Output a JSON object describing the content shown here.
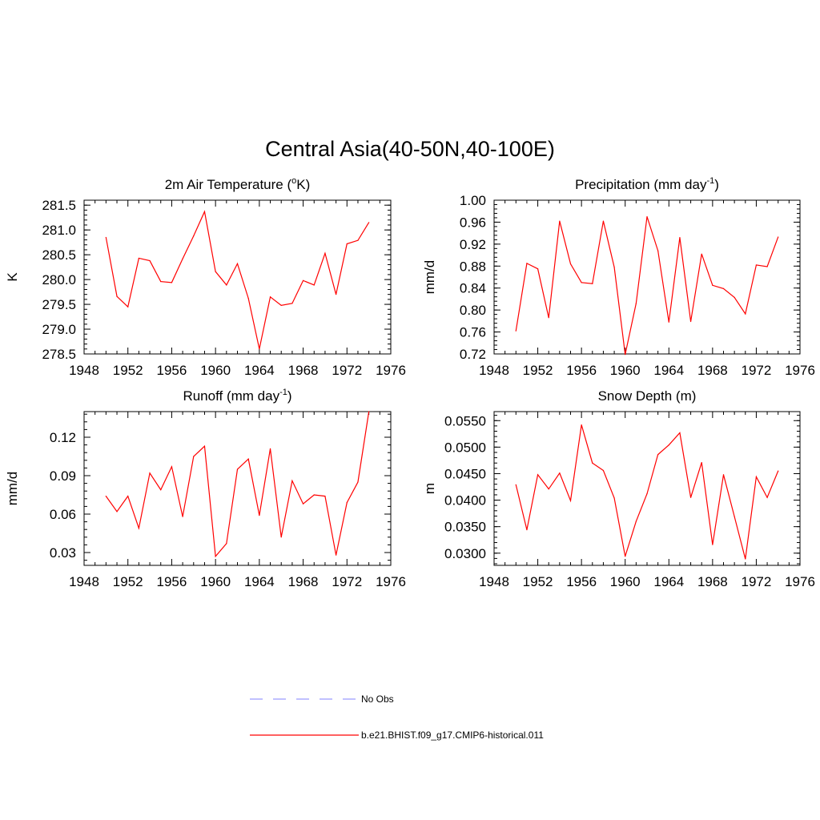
{
  "title": "Central Asia(40-50N,40-100E)",
  "colors": {
    "model_line": "#ff0000",
    "obs_line": "#9a9aff",
    "frame": "#000000"
  },
  "legend": {
    "items": [
      {
        "label": "No Obs",
        "style": "dashed",
        "color": "#9a9aff"
      },
      {
        "label": "b.e21.BHIST.f09_g17.CMIP6-historical.011",
        "style": "solid",
        "color": "#ff0000"
      }
    ]
  },
  "chart_data": [
    {
      "type": "line",
      "title": "2m Air Temperature (oK)",
      "title_parts": [
        "2m Air Temperature (",
        "o",
        "K)"
      ],
      "ylabel": "K",
      "xlim": [
        1948,
        1976
      ],
      "xticks": [
        "1948",
        "1952",
        "1956",
        "1960",
        "1964",
        "1968",
        "1972",
        "1976"
      ],
      "ylim": [
        278.5,
        281.6
      ],
      "yticks": [
        "278.5",
        "279.0",
        "279.5",
        "280.0",
        "280.5",
        "281.0",
        "281.5"
      ],
      "x": [
        1950,
        1951,
        1952,
        1953,
        1954,
        1955,
        1956,
        1957,
        1958,
        1959,
        1960,
        1961,
        1962,
        1963,
        1964,
        1965,
        1966,
        1967,
        1968,
        1969,
        1970,
        1971,
        1972,
        1973,
        1974
      ],
      "series": [
        {
          "name": "b.e21.BHIST.f09_g17.CMIP6-historical.011",
          "values": [
            280.85,
            279.66,
            279.45,
            280.43,
            280.38,
            279.96,
            279.94,
            280.42,
            280.88,
            281.37,
            280.16,
            279.89,
            280.32,
            279.62,
            278.6,
            279.65,
            279.48,
            279.52,
            279.98,
            279.89,
            280.53,
            279.7,
            280.72,
            280.79,
            281.15
          ]
        }
      ]
    },
    {
      "type": "line",
      "title": "Precipitation (mm day-1)",
      "title_parts": [
        "Precipitation (mm day",
        "-1",
        ")"
      ],
      "ylabel": "mm/d",
      "xlim": [
        1948,
        1976
      ],
      "xticks": [
        "1948",
        "1952",
        "1956",
        "1960",
        "1964",
        "1968",
        "1972",
        "1976"
      ],
      "ylim": [
        0.72,
        1.0
      ],
      "yticks": [
        "0.72",
        "0.76",
        "0.80",
        "0.84",
        "0.88",
        "0.92",
        "0.96",
        "1.00"
      ],
      "x": [
        1950,
        1951,
        1952,
        1953,
        1954,
        1955,
        1956,
        1957,
        1958,
        1959,
        1960,
        1961,
        1962,
        1963,
        1964,
        1965,
        1966,
        1967,
        1968,
        1969,
        1970,
        1971,
        1972,
        1973,
        1974
      ],
      "series": [
        {
          "name": "b.e21.BHIST.f09_g17.CMIP6-historical.011",
          "values": [
            0.762,
            0.885,
            0.875,
            0.786,
            0.962,
            0.884,
            0.85,
            0.848,
            0.962,
            0.878,
            0.719,
            0.812,
            0.97,
            0.908,
            0.778,
            0.932,
            0.779,
            0.902,
            0.845,
            0.839,
            0.823,
            0.793,
            0.882,
            0.879,
            0.933
          ]
        }
      ]
    },
    {
      "type": "line",
      "title": "Runoff (mm day-1)",
      "title_parts": [
        "Runoff (mm day",
        "-1",
        ")"
      ],
      "ylabel": "mm/d",
      "xlim": [
        1948,
        1976
      ],
      "xticks": [
        "1948",
        "1952",
        "1956",
        "1960",
        "1964",
        "1968",
        "1972",
        "1976"
      ],
      "ylim": [
        0.02,
        0.14
      ],
      "yticks": [
        "0.03",
        "0.06",
        "0.09",
        "0.12"
      ],
      "ytick_values": [
        0.03,
        0.06,
        0.09,
        0.12
      ],
      "x": [
        1950,
        1951,
        1952,
        1953,
        1954,
        1955,
        1956,
        1957,
        1958,
        1959,
        1960,
        1961,
        1962,
        1963,
        1964,
        1965,
        1966,
        1967,
        1968,
        1969,
        1970,
        1971,
        1972,
        1973,
        1974
      ],
      "series": [
        {
          "name": "b.e21.BHIST.f09_g17.CMIP6-historical.011",
          "values": [
            0.074,
            0.062,
            0.074,
            0.049,
            0.092,
            0.079,
            0.097,
            0.058,
            0.105,
            0.113,
            0.027,
            0.037,
            0.095,
            0.103,
            0.059,
            0.111,
            0.042,
            0.086,
            0.068,
            0.075,
            0.074,
            0.028,
            0.069,
            0.085,
            0.14
          ]
        }
      ]
    },
    {
      "type": "line",
      "title": "Snow Depth (m)",
      "ylabel": "m",
      "xlim": [
        1948,
        1976
      ],
      "xticks": [
        "1948",
        "1952",
        "1956",
        "1960",
        "1964",
        "1968",
        "1972",
        "1976"
      ],
      "ylim": [
        0.0277,
        0.0567
      ],
      "yticks": [
        "0.0300",
        "0.0350",
        "0.0400",
        "0.0450",
        "0.0500",
        "0.0550"
      ],
      "ytick_values": [
        0.03,
        0.035,
        0.04,
        0.045,
        0.05,
        0.055
      ],
      "x": [
        1950,
        1951,
        1952,
        1953,
        1954,
        1955,
        1956,
        1957,
        1958,
        1959,
        1960,
        1961,
        1962,
        1963,
        1964,
        1965,
        1966,
        1967,
        1968,
        1969,
        1970,
        1971,
        1972,
        1973,
        1974
      ],
      "series": [
        {
          "name": "b.e21.BHIST.f09_g17.CMIP6-historical.011",
          "values": [
            0.0429,
            0.0344,
            0.0448,
            0.0421,
            0.0451,
            0.0399,
            0.0542,
            0.047,
            0.0456,
            0.0404,
            0.0294,
            0.036,
            0.0412,
            0.0486,
            0.0504,
            0.0527,
            0.0405,
            0.0471,
            0.0316,
            0.0448,
            0.0369,
            0.0289,
            0.0444,
            0.0405,
            0.0455
          ]
        }
      ]
    }
  ]
}
